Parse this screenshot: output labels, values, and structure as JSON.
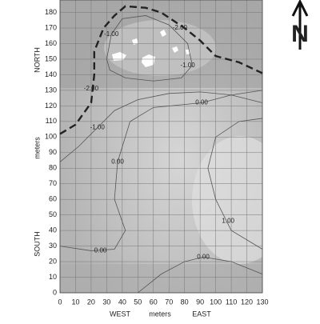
{
  "compass": "N",
  "chart_data": {
    "type": "contour",
    "x_labels": [
      "WEST",
      "meters",
      "EAST"
    ],
    "y_labels": [
      "SOUTH",
      "meters",
      "NORTH"
    ],
    "xlim": [
      0,
      130
    ],
    "ylim": [
      0,
      188
    ],
    "xticks": [
      0,
      10,
      20,
      30,
      40,
      50,
      60,
      70,
      80,
      90,
      100,
      110,
      120,
      130
    ],
    "yticks": [
      0,
      10,
      20,
      30,
      40,
      50,
      60,
      70,
      80,
      90,
      100,
      110,
      120,
      130,
      140,
      150,
      160,
      170,
      180
    ],
    "grid": true,
    "contours": [
      {
        "level": -2,
        "label": "-2.00",
        "dashed": true,
        "x": [
          0,
          10,
          20,
          22,
          22,
          28,
          35,
          42,
          55,
          65,
          80,
          90,
          100,
          115,
          130
        ],
        "y": [
          102,
          108,
          122,
          140,
          155,
          170,
          178,
          184,
          183,
          180,
          170,
          162,
          152,
          148,
          141
        ],
        "label_points": [
          {
            "x": 20,
            "y": 131
          },
          {
            "x": 77,
            "y": 170
          }
        ]
      },
      {
        "level": -1,
        "label": "-1.00",
        "dashed": false,
        "x": [
          30,
          33,
          40,
          55,
          70,
          82,
          85,
          78,
          60,
          42,
          32,
          30
        ],
        "y": [
          150,
          166,
          176,
          178,
          172,
          160,
          146,
          138,
          136,
          138,
          143,
          150
        ],
        "label_points": [
          {
            "x": 33,
            "y": 166
          },
          {
            "x": 82,
            "y": 146
          }
        ]
      },
      {
        "level": -1,
        "label": "-1.00",
        "dashed": false,
        "x": [
          0,
          12,
          24,
          35,
          50,
          70,
          90,
          110,
          130
        ],
        "y": [
          84,
          94,
          106,
          117,
          124,
          128,
          129,
          127,
          122
        ],
        "label_points": [
          {
            "x": 24,
            "y": 106
          }
        ]
      },
      {
        "level": 0,
        "label": "0.00",
        "dashed": false,
        "x": [
          0,
          20,
          35,
          42,
          35,
          37,
          45,
          60,
          91,
          110,
          130
        ],
        "y": [
          30,
          27,
          28,
          40,
          60,
          84,
          110,
          119,
          122,
          127,
          130
        ],
        "label_points": [
          {
            "x": 37,
            "y": 84
          },
          {
            "x": 91,
            "y": 122
          },
          {
            "x": 26,
            "y": 27
          }
        ]
      },
      {
        "level": 0,
        "label": "0.00",
        "dashed": false,
        "x": [
          50,
          65,
          80,
          92,
          110,
          130
        ],
        "y": [
          0,
          12,
          20,
          23,
          20,
          12
        ],
        "label_points": [
          {
            "x": 92,
            "y": 23
          }
        ]
      },
      {
        "level": 1,
        "label": "1.00",
        "dashed": false,
        "x": [
          130,
          110,
          100,
          95,
          100,
          115,
          130
        ],
        "y": [
          28,
          40,
          60,
          80,
          100,
          110,
          112
        ],
        "label_points": [
          {
            "x": 108,
            "y": 46
          }
        ]
      }
    ]
  }
}
